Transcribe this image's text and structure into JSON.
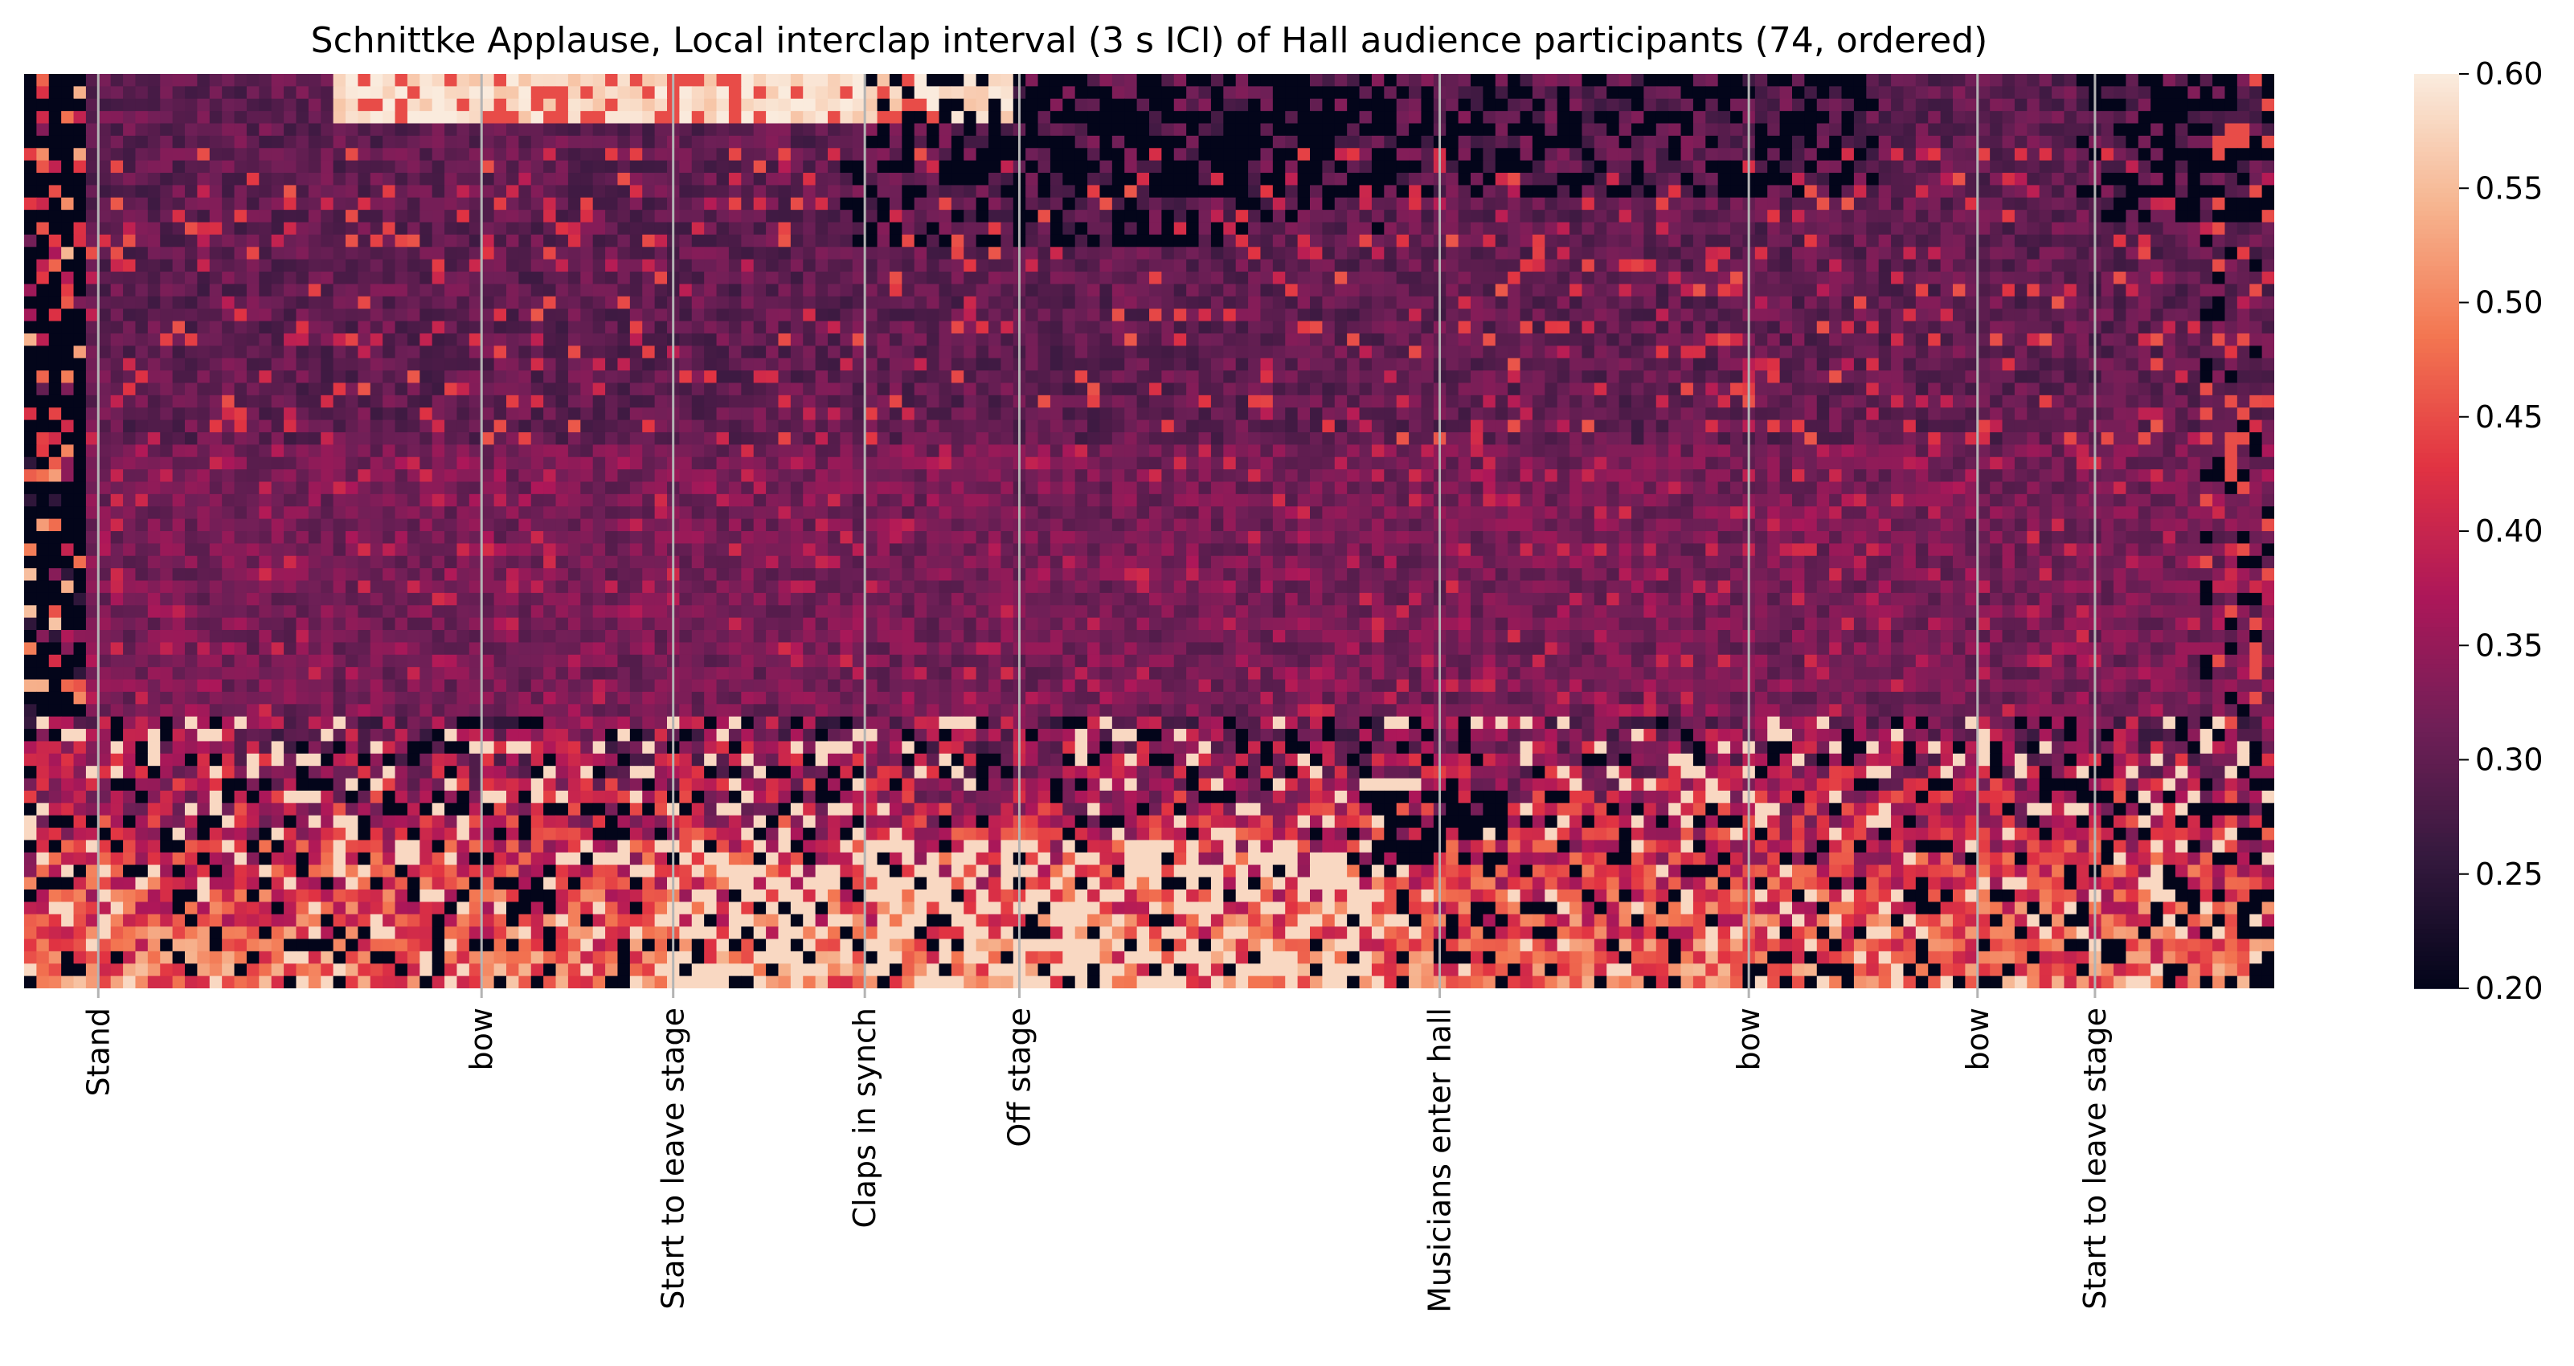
{
  "chart_data": {
    "type": "heatmap",
    "title": "Schnittke Applause, Local interclap interval (3 s ICI) of Hall audience participants (74, ordered)",
    "xlabel": "",
    "ylabel": "",
    "rows": 74,
    "columns": 182,
    "colorbar": {
      "range": [
        0.2,
        0.6
      ],
      "ticks": [
        "0.20",
        "0.25",
        "0.30",
        "0.35",
        "0.40",
        "0.45",
        "0.50",
        "0.55",
        "0.60"
      ],
      "colormap": "rocket",
      "stops": [
        "#03051a",
        "#35193e",
        "#701f57",
        "#ad1759",
        "#e13342",
        "#f37651",
        "#f6b48f",
        "#faebdd"
      ]
    },
    "event_markers": [
      {
        "label": "Stand",
        "column": 6
      },
      {
        "label": "bow",
        "column": 37
      },
      {
        "label": "Start to leave stage",
        "column": 52.5
      },
      {
        "label": "Claps in synch",
        "column": 68
      },
      {
        "label": "Off stage",
        "column": 80.5
      },
      {
        "label": "Musicians enter hall",
        "column": 114.5
      },
      {
        "label": "bow",
        "column": 139.5
      },
      {
        "label": "bow",
        "column": 158
      },
      {
        "label": "Start to leave stage",
        "column": 167.5
      }
    ],
    "grid": false,
    "legend": "colorbar-right",
    "value_note": "Cell values reconstructed approximately: mostly 0.30–0.36 mid-block, dark (≤0.20) leftmost columns, right top region and gaps; bright (0.5–0.6) bands at top-left and bottom rows"
  }
}
